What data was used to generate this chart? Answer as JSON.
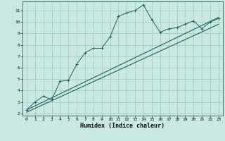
{
  "bg_color": "#c8e8e0",
  "grid_color": "#a0c8c0",
  "line_color": "#1e6060",
  "xlabel": "Humidex (Indice chaleur)",
  "xlim": [
    -0.5,
    23.5
  ],
  "ylim": [
    1.8,
    11.8
  ],
  "yticks": [
    2,
    3,
    4,
    5,
    6,
    7,
    8,
    9,
    10,
    11
  ],
  "xticks": [
    0,
    1,
    2,
    3,
    4,
    5,
    6,
    7,
    8,
    9,
    10,
    11,
    12,
    13,
    14,
    15,
    16,
    17,
    18,
    19,
    20,
    21,
    22,
    23
  ],
  "line1_x": [
    0,
    1,
    2,
    3,
    4,
    5,
    6,
    7,
    8,
    9,
    10,
    11,
    12,
    13,
    14,
    15,
    16,
    17,
    18,
    19,
    20,
    21,
    22,
    23
  ],
  "line1_y": [
    2.3,
    3.0,
    3.5,
    3.2,
    4.8,
    4.9,
    6.3,
    7.3,
    7.7,
    7.7,
    8.7,
    10.5,
    10.8,
    11.0,
    11.5,
    10.2,
    9.1,
    9.4,
    9.5,
    9.8,
    10.1,
    9.4,
    10.0,
    10.3
  ],
  "line2": [
    [
      0,
      2.3
    ],
    [
      23,
      10.4
    ]
  ],
  "line3": [
    [
      0,
      2.1
    ],
    [
      23,
      9.8
    ]
  ]
}
